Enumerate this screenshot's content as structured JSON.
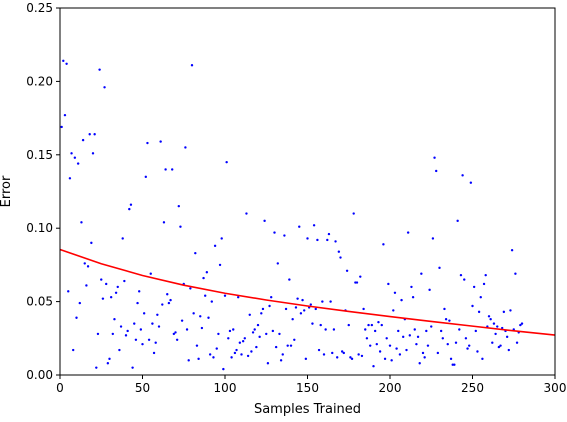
{
  "chart_data": {
    "type": "scatter",
    "title": "",
    "xlabel": "Samples Trained",
    "ylabel": "Error",
    "xlim": [
      0,
      300
    ],
    "ylim": [
      0,
      0.25
    ],
    "xticks": [
      0,
      50,
      100,
      150,
      200,
      250,
      300
    ],
    "yticks": [
      0.0,
      0.05,
      0.1,
      0.15,
      0.2,
      0.25
    ],
    "xtick_labels": [
      "0",
      "50",
      "100",
      "150",
      "200",
      "250",
      "300"
    ],
    "ytick_labels": [
      "0.00",
      "0.05",
      "0.10",
      "0.15",
      "0.20",
      "0.25"
    ],
    "grid": false,
    "legend": "none",
    "series": [
      {
        "kind": "scatter",
        "color": "#0000ff",
        "points": [
          [
            1,
            0.169
          ],
          [
            2,
            0.214
          ],
          [
            3,
            0.177
          ],
          [
            4,
            0.212
          ],
          [
            5,
            0.057
          ],
          [
            6,
            0.134
          ],
          [
            7,
            0.151
          ],
          [
            8,
            0.017
          ],
          [
            9,
            0.148
          ],
          [
            10,
            0.039
          ],
          [
            11,
            0.144
          ],
          [
            12,
            0.049
          ],
          [
            13,
            0.104
          ],
          [
            14,
            0.16
          ],
          [
            15,
            0.076
          ],
          [
            16,
            0.061
          ],
          [
            17,
            0.074
          ],
          [
            18,
            0.164
          ],
          [
            19,
            0.09
          ],
          [
            20,
            0.151
          ],
          [
            21,
            0.164
          ],
          [
            22,
            0.005
          ],
          [
            23,
            0.028
          ],
          [
            24,
            0.208
          ],
          [
            25,
            0.065
          ],
          [
            26,
            0.052
          ],
          [
            27,
            0.196
          ],
          [
            28,
            0.062
          ],
          [
            29,
            0.008
          ],
          [
            30,
            0.011
          ],
          [
            31,
            0.053
          ],
          [
            32,
            0.028
          ],
          [
            33,
            0.038
          ],
          [
            34,
            0.056
          ],
          [
            35,
            0.06
          ],
          [
            36,
            0.017
          ],
          [
            37,
            0.033
          ],
          [
            38,
            0.093
          ],
          [
            39,
            0.064
          ],
          [
            40,
            0.027
          ],
          [
            41,
            0.03
          ],
          [
            42,
            0.113
          ],
          [
            43,
            0.116
          ],
          [
            44,
            0.005
          ],
          [
            45,
            0.035
          ],
          [
            46,
            0.024
          ],
          [
            47,
            0.049
          ],
          [
            48,
            0.057
          ],
          [
            49,
            0.031
          ],
          [
            50,
            0.021
          ],
          [
            51,
            0.042
          ],
          [
            52,
            0.135
          ],
          [
            53,
            0.158
          ],
          [
            54,
            0.024
          ],
          [
            55,
            0.069
          ],
          [
            56,
            0.035
          ],
          [
            57,
            0.015
          ],
          [
            58,
            0.022
          ],
          [
            59,
            0.041
          ],
          [
            60,
            0.033
          ],
          [
            61,
            0.159
          ],
          [
            62,
            0.048
          ],
          [
            63,
            0.104
          ],
          [
            64,
            0.14
          ],
          [
            65,
            0.055
          ],
          [
            66,
            0.049
          ],
          [
            67,
            0.051
          ],
          [
            68,
            0.14
          ],
          [
            69,
            0.028
          ],
          [
            70,
            0.029
          ],
          [
            71,
            0.024
          ],
          [
            72,
            0.115
          ],
          [
            73,
            0.101
          ],
          [
            74,
            0.037
          ],
          [
            75,
            0.062
          ],
          [
            76,
            0.155
          ],
          [
            77,
            0.031
          ],
          [
            78,
            0.01
          ],
          [
            79,
            0.059
          ],
          [
            80,
            0.211
          ],
          [
            81,
            0.042
          ],
          [
            82,
            0.083
          ],
          [
            83,
            0.02
          ],
          [
            84,
            0.011
          ],
          [
            85,
            0.04
          ],
          [
            86,
            0.032
          ],
          [
            87,
            0.066
          ],
          [
            88,
            0.054
          ],
          [
            89,
            0.07
          ],
          [
            90,
            0.039
          ],
          [
            91,
            0.014
          ],
          [
            92,
            0.05
          ],
          [
            93,
            0.012
          ],
          [
            94,
            0.088
          ],
          [
            95,
            0.018
          ],
          [
            96,
            0.028
          ],
          [
            97,
            0.075
          ],
          [
            98,
            0.093
          ],
          [
            99,
            0.004
          ],
          [
            100,
            0.054
          ],
          [
            101,
            0.145
          ],
          [
            102,
            0.025
          ],
          [
            103,
            0.03
          ],
          [
            104,
            0.012
          ],
          [
            105,
            0.031
          ],
          [
            106,
            0.015
          ],
          [
            107,
            0.017
          ],
          [
            108,
            0.053
          ],
          [
            109,
            0.022
          ],
          [
            110,
            0.014
          ],
          [
            111,
            0.023
          ],
          [
            112,
            0.025
          ],
          [
            113,
            0.11
          ],
          [
            114,
            0.013
          ],
          [
            115,
            0.041
          ],
          [
            116,
            0.016
          ],
          [
            117,
            0.029
          ],
          [
            118,
            0.031
          ],
          [
            119,
            0.019
          ],
          [
            120,
            0.034
          ],
          [
            121,
            0.026
          ],
          [
            122,
            0.042
          ],
          [
            123,
            0.045
          ],
          [
            124,
            0.105
          ],
          [
            125,
            0.028
          ],
          [
            126,
            0.008
          ],
          [
            127,
            0.047
          ],
          [
            128,
            0.053
          ],
          [
            129,
            0.03
          ],
          [
            130,
            0.097
          ],
          [
            131,
            0.019
          ],
          [
            132,
            0.076
          ],
          [
            133,
            0.028
          ],
          [
            134,
            0.01
          ],
          [
            135,
            0.014
          ],
          [
            136,
            0.095
          ],
          [
            137,
            0.045
          ],
          [
            138,
            0.02
          ],
          [
            139,
            0.065
          ],
          [
            140,
            0.02
          ],
          [
            141,
            0.038
          ],
          [
            142,
            0.024
          ],
          [
            143,
            0.046
          ],
          [
            144,
            0.052
          ],
          [
            145,
            0.101
          ],
          [
            146,
            0.042
          ],
          [
            147,
            0.051
          ],
          [
            148,
            0.044
          ],
          [
            149,
            0.011
          ],
          [
            150,
            0.093
          ],
          [
            151,
            0.046
          ],
          [
            152,
            0.048
          ],
          [
            153,
            0.035
          ],
          [
            154,
            0.102
          ],
          [
            155,
            0.045
          ],
          [
            156,
            0.092
          ],
          [
            157,
            0.017
          ],
          [
            158,
            0.034
          ],
          [
            159,
            0.05
          ],
          [
            160,
            0.014
          ],
          [
            161,
            0.031
          ],
          [
            162,
            0.092
          ],
          [
            163,
            0.096
          ],
          [
            164,
            0.05
          ],
          [
            165,
            0.015
          ],
          [
            166,
            0.031
          ],
          [
            167,
            0.091
          ],
          [
            168,
            0.012
          ],
          [
            169,
            0.084
          ],
          [
            170,
            0.08
          ],
          [
            171,
            0.016
          ],
          [
            172,
            0.015
          ],
          [
            173,
            0.044
          ],
          [
            174,
            0.071
          ],
          [
            175,
            0.034
          ],
          [
            176,
            0.012
          ],
          [
            177,
            0.011
          ],
          [
            178,
            0.11
          ],
          [
            179,
            0.063
          ],
          [
            180,
            0.063
          ],
          [
            181,
            0.014
          ],
          [
            182,
            0.067
          ],
          [
            183,
            0.013
          ],
          [
            184,
            0.045
          ],
          [
            185,
            0.031
          ],
          [
            186,
            0.025
          ],
          [
            187,
            0.034
          ],
          [
            188,
            0.02
          ],
          [
            189,
            0.034
          ],
          [
            190,
            0.006
          ],
          [
            191,
            0.03
          ],
          [
            192,
            0.021
          ],
          [
            193,
            0.036
          ],
          [
            194,
            0.016
          ],
          [
            195,
            0.034
          ],
          [
            196,
            0.089
          ],
          [
            197,
            0.011
          ],
          [
            198,
            0.025
          ],
          [
            199,
            0.062
          ],
          [
            200,
            0.02
          ],
          [
            201,
            0.01
          ],
          [
            202,
            0.044
          ],
          [
            203,
            0.056
          ],
          [
            204,
            0.018
          ],
          [
            205,
            0.03
          ],
          [
            206,
            0.014
          ],
          [
            207,
            0.051
          ],
          [
            208,
            0.026
          ],
          [
            209,
            0.038
          ],
          [
            210,
            0.017
          ],
          [
            211,
            0.097
          ],
          [
            212,
            0.027
          ],
          [
            213,
            0.06
          ],
          [
            214,
            0.053
          ],
          [
            215,
            0.031
          ],
          [
            216,
            0.021
          ],
          [
            217,
            0.026
          ],
          [
            218,
            0.008
          ],
          [
            219,
            0.069
          ],
          [
            220,
            0.015
          ],
          [
            221,
            0.012
          ],
          [
            222,
            0.03
          ],
          [
            223,
            0.02
          ],
          [
            224,
            0.058
          ],
          [
            225,
            0.033
          ],
          [
            226,
            0.093
          ],
          [
            227,
            0.148
          ],
          [
            228,
            0.139
          ],
          [
            229,
            0.015
          ],
          [
            230,
            0.073
          ],
          [
            231,
            0.03
          ],
          [
            232,
            0.025
          ],
          [
            233,
            0.045
          ],
          [
            234,
            0.038
          ],
          [
            235,
            0.021
          ],
          [
            236,
            0.037
          ],
          [
            237,
            0.011
          ],
          [
            238,
            0.007
          ],
          [
            239,
            0.007
          ],
          [
            240,
            0.022
          ],
          [
            241,
            0.105
          ],
          [
            242,
            0.031
          ],
          [
            243,
            0.068
          ],
          [
            244,
            0.136
          ],
          [
            245,
            0.065
          ],
          [
            246,
            0.025
          ],
          [
            247,
            0.018
          ],
          [
            248,
            0.02
          ],
          [
            249,
            0.131
          ],
          [
            250,
            0.047
          ],
          [
            251,
            0.06
          ],
          [
            252,
            0.03
          ],
          [
            253,
            0.016
          ],
          [
            254,
            0.043
          ],
          [
            255,
            0.053
          ],
          [
            256,
            0.011
          ],
          [
            257,
            0.062
          ],
          [
            258,
            0.068
          ],
          [
            259,
            0.033
          ],
          [
            260,
            0.04
          ],
          [
            261,
            0.038
          ],
          [
            262,
            0.022
          ],
          [
            263,
            0.035
          ],
          [
            264,
            0.028
          ],
          [
            265,
            0.033
          ],
          [
            266,
            0.019
          ],
          [
            267,
            0.02
          ],
          [
            268,
            0.032
          ],
          [
            269,
            0.043
          ],
          [
            270,
            0.03
          ],
          [
            271,
            0.026
          ],
          [
            272,
            0.017
          ],
          [
            273,
            0.044
          ],
          [
            274,
            0.085
          ],
          [
            275,
            0.031
          ],
          [
            276,
            0.069
          ],
          [
            277,
            0.022
          ],
          [
            278,
            0.029
          ],
          [
            279,
            0.034
          ],
          [
            280,
            0.035
          ]
        ]
      },
      {
        "kind": "line",
        "color": "#ff0000",
        "x": [
          0,
          25,
          50,
          75,
          100,
          125,
          150,
          175,
          200,
          225,
          250,
          275,
          300
        ],
        "y": [
          0.0855,
          0.0758,
          0.0678,
          0.0612,
          0.0557,
          0.0511,
          0.047,
          0.0433,
          0.0398,
          0.0365,
          0.0333,
          0.0301,
          0.0272
        ]
      }
    ]
  }
}
